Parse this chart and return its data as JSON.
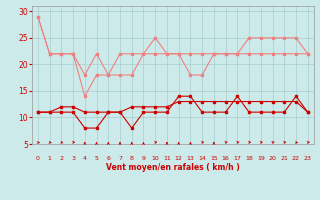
{
  "x": [
    0,
    1,
    2,
    3,
    4,
    5,
    6,
    7,
    8,
    9,
    10,
    11,
    12,
    13,
    14,
    15,
    16,
    17,
    18,
    19,
    20,
    21,
    22,
    23
  ],
  "line1": [
    29,
    22,
    22,
    22,
    18,
    22,
    18,
    22,
    22,
    22,
    25,
    22,
    22,
    18,
    18,
    22,
    22,
    22,
    25,
    25,
    25,
    25,
    25,
    22
  ],
  "line2": [
    29,
    22,
    22,
    22,
    14,
    18,
    18,
    18,
    18,
    22,
    22,
    22,
    22,
    22,
    22,
    22,
    22,
    22,
    22,
    22,
    22,
    22,
    22,
    22
  ],
  "line3": [
    11,
    11,
    11,
    11,
    8,
    8,
    11,
    11,
    8,
    11,
    11,
    11,
    14,
    14,
    11,
    11,
    11,
    14,
    11,
    11,
    11,
    11,
    14,
    11
  ],
  "line4": [
    11,
    11,
    12,
    12,
    11,
    11,
    11,
    11,
    12,
    12,
    12,
    12,
    13,
    13,
    13,
    13,
    13,
    13,
    13,
    13,
    13,
    13,
    13,
    11
  ],
  "color_light": "#f08080",
  "color_dark": "#cc0000",
  "bg_color": "#cceaea",
  "grid_color": "#aacccc",
  "xlabel": "Vent moyen/en rafales ( km/h )",
  "ylim": [
    5,
    31
  ],
  "xlim": [
    -0.5,
    23.5
  ],
  "yticks": [
    5,
    10,
    15,
    20,
    25,
    30
  ],
  "xticks": [
    0,
    1,
    2,
    3,
    4,
    5,
    6,
    7,
    8,
    9,
    10,
    11,
    12,
    13,
    14,
    15,
    16,
    17,
    18,
    19,
    20,
    21,
    22,
    23
  ],
  "wind_dirs_deg": [
    315,
    315,
    315,
    45,
    90,
    90,
    90,
    90,
    90,
    90,
    45,
    90,
    90,
    90,
    45,
    90,
    45,
    45,
    45,
    45,
    45,
    45,
    315,
    45
  ],
  "arrow_color": "#cc0000"
}
